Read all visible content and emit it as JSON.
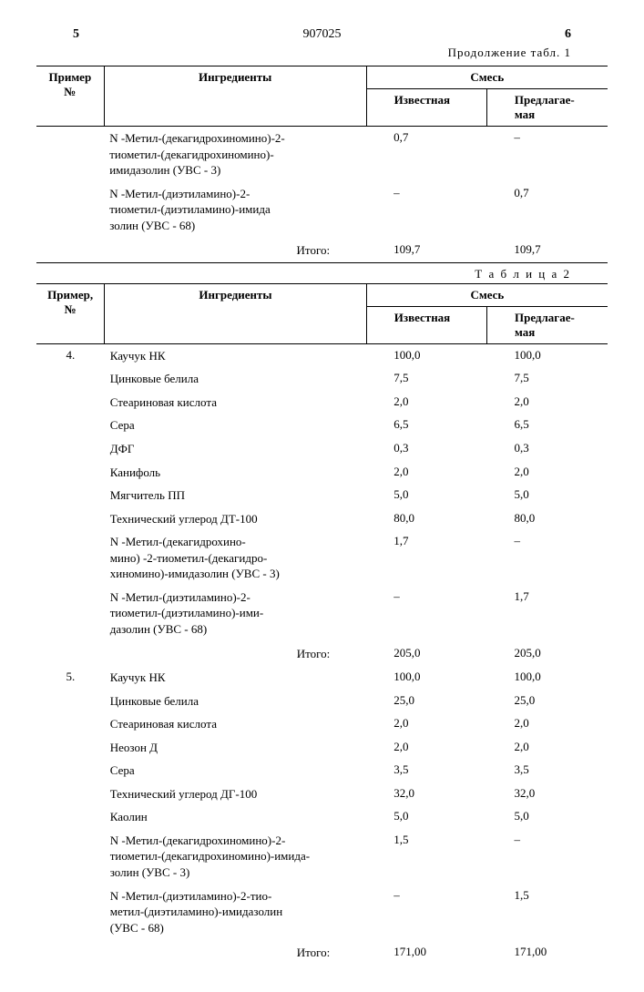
{
  "header": {
    "left_col": "5",
    "doc_no": "907025",
    "right_col": "6",
    "continued": "Продолжение табл. 1"
  },
  "table1": {
    "head": {
      "primer": "Пример\n№",
      "ingredients": "Ингредиенты",
      "mix": "Смесь",
      "known": "Известная",
      "proposed": "Предлагае-\nмая"
    },
    "rows": [
      {
        "ingr": "N -Метил-(декагидрохиномино)-2-\nтиометил-(декагидрохиномино)-\nимидазолин (УВС - 3)",
        "known": "0,7",
        "proposed": "–"
      },
      {
        "ingr": "N -Метил-(диэтиламино)-2-\nтиометил-(диэтиламино)-имида\nзолин (УВС - 68)",
        "known": "–",
        "proposed": "0,7"
      }
    ],
    "totals": {
      "label": "Итого:",
      "known": "109,7",
      "proposed": "109,7"
    }
  },
  "table2_label": "Т а б л и ц а  2",
  "table2": {
    "head": {
      "primer": "Пример,\n№",
      "ingredients": "Ингредиенты",
      "mix": "Смесь",
      "known": "Известная",
      "proposed": "Предлагае-\nмая"
    },
    "groups": [
      {
        "primer": "4.",
        "rows": [
          {
            "ingr": "Каучук НК",
            "known": "100,0",
            "proposed": "100,0"
          },
          {
            "ingr": "Цинковые белила",
            "known": "7,5",
            "proposed": "7,5"
          },
          {
            "ingr": "Стеариновая кислота",
            "known": "2,0",
            "proposed": "2,0"
          },
          {
            "ingr": "Сера",
            "known": "6,5",
            "proposed": "6,5"
          },
          {
            "ingr": "ДФГ",
            "known": "0,3",
            "proposed": "0,3"
          },
          {
            "ingr": "Канифоль",
            "known": "2,0",
            "proposed": "2,0"
          },
          {
            "ingr": "Мягчитель ПП",
            "known": "5,0",
            "proposed": "5,0"
          },
          {
            "ingr": "Технический углерод ДТ-100",
            "known": "80,0",
            "proposed": "80,0"
          },
          {
            "ingr": "N -Метил-(декагидрохино-\nмино) -2-тиометил-(декагидро-\nхиномино)-имидазолин (УВС - 3)",
            "known": "1,7",
            "proposed": "–"
          },
          {
            "ingr": "N -Метил-(диэтиламино)-2-\nтиометил-(диэтиламино)-ими-\nдазолин (УВС - 68)",
            "known": "–",
            "proposed": "1,7"
          }
        ],
        "totals": {
          "label": "Итого:",
          "known": "205,0",
          "proposed": "205,0"
        }
      },
      {
        "primer": "5.",
        "rows": [
          {
            "ingr": "Каучук НК",
            "known": "100,0",
            "proposed": "100,0"
          },
          {
            "ingr": "Цинковые белила",
            "known": "25,0",
            "proposed": "25,0"
          },
          {
            "ingr": "Стеариновая кислота",
            "known": "2,0",
            "proposed": "2,0"
          },
          {
            "ingr": "Неозон Д",
            "known": "2,0",
            "proposed": "2,0"
          },
          {
            "ingr": "Сера",
            "known": "3,5",
            "proposed": "3,5"
          },
          {
            "ingr": "Технический углерод ДГ-100",
            "known": "32,0",
            "proposed": "32,0"
          },
          {
            "ingr": "Каолин",
            "known": "5,0",
            "proposed": "5,0"
          },
          {
            "ingr": "N -Метил-(декагидрохиномино)-2-\nтиометил-(декагидрохиномино)-имида-\nзолин (УВС - 3)",
            "known": "1,5",
            "proposed": "–"
          },
          {
            "ingr": "N -Метил-(диэтиламино)-2-тио-\nметил-(диэтиламино)-имидазолин\n(УВС - 68)",
            "known": "–",
            "proposed": "1,5"
          }
        ],
        "totals": {
          "label": "Итого:",
          "known": "171,00",
          "proposed": "171,00"
        }
      }
    ]
  }
}
